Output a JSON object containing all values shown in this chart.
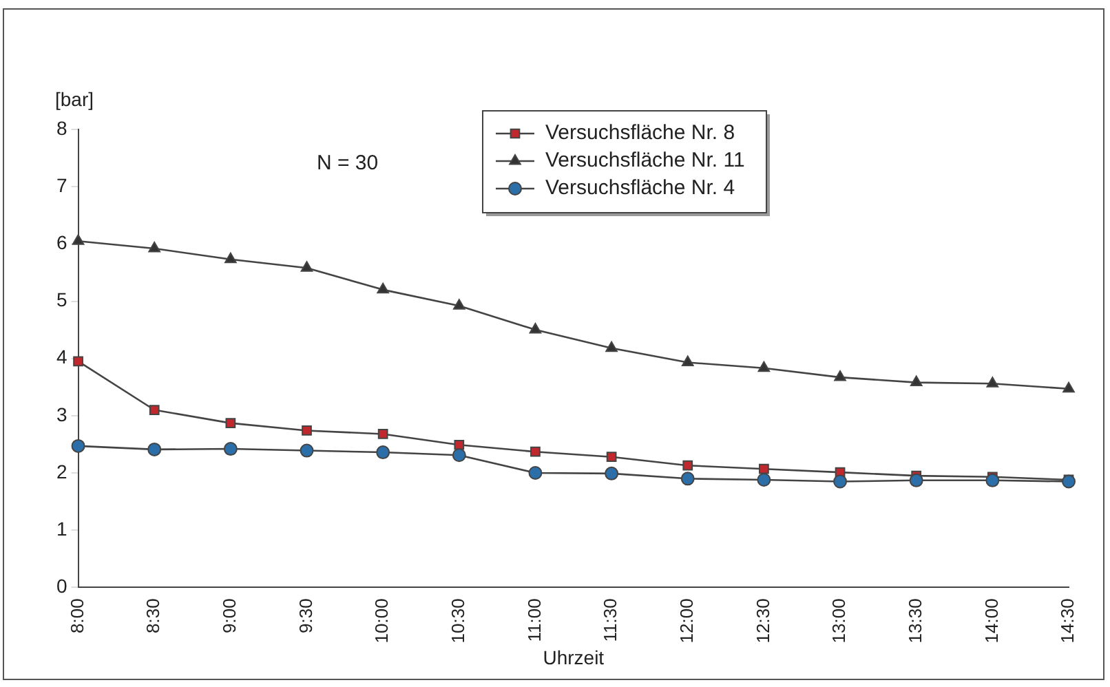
{
  "chart_data": {
    "type": "line",
    "xlabel": "Uhrzeit",
    "ylabel": "[bar]",
    "annotations": [
      "N = 30"
    ],
    "categories": [
      "8:00",
      "8:30",
      "9:00",
      "9:30",
      "10:00",
      "10:30",
      "11:00",
      "11:30",
      "12:00",
      "12:30",
      "13:00",
      "13:30",
      "14:00",
      "14:30"
    ],
    "series": [
      {
        "name": "Versuchsfläche Nr. 8",
        "color": "#c0282d",
        "marker": "square",
        "values": [
          3.95,
          3.1,
          2.87,
          2.74,
          2.68,
          2.49,
          2.37,
          2.28,
          2.13,
          2.07,
          2.01,
          1.95,
          1.93,
          1.88
        ]
      },
      {
        "name": "Versuchsfläche Nr. 11",
        "color": "#333333",
        "marker": "triangle",
        "values": [
          6.05,
          5.92,
          5.73,
          5.58,
          5.2,
          4.92,
          4.5,
          4.18,
          3.93,
          3.83,
          3.67,
          3.58,
          3.56,
          3.47
        ]
      },
      {
        "name": "Versuchsfläche Nr. 4",
        "color": "#2b6ea8",
        "marker": "circle",
        "values": [
          2.47,
          2.41,
          2.42,
          2.39,
          2.36,
          2.31,
          2.0,
          1.99,
          1.9,
          1.88,
          1.85,
          1.87,
          1.87,
          1.85
        ]
      }
    ],
    "ylim": [
      0,
      8
    ],
    "yticks": [
      0,
      1,
      2,
      3,
      4,
      5,
      6,
      7,
      8
    ],
    "grid": false,
    "legend": "top right",
    "line_style": "solid"
  }
}
